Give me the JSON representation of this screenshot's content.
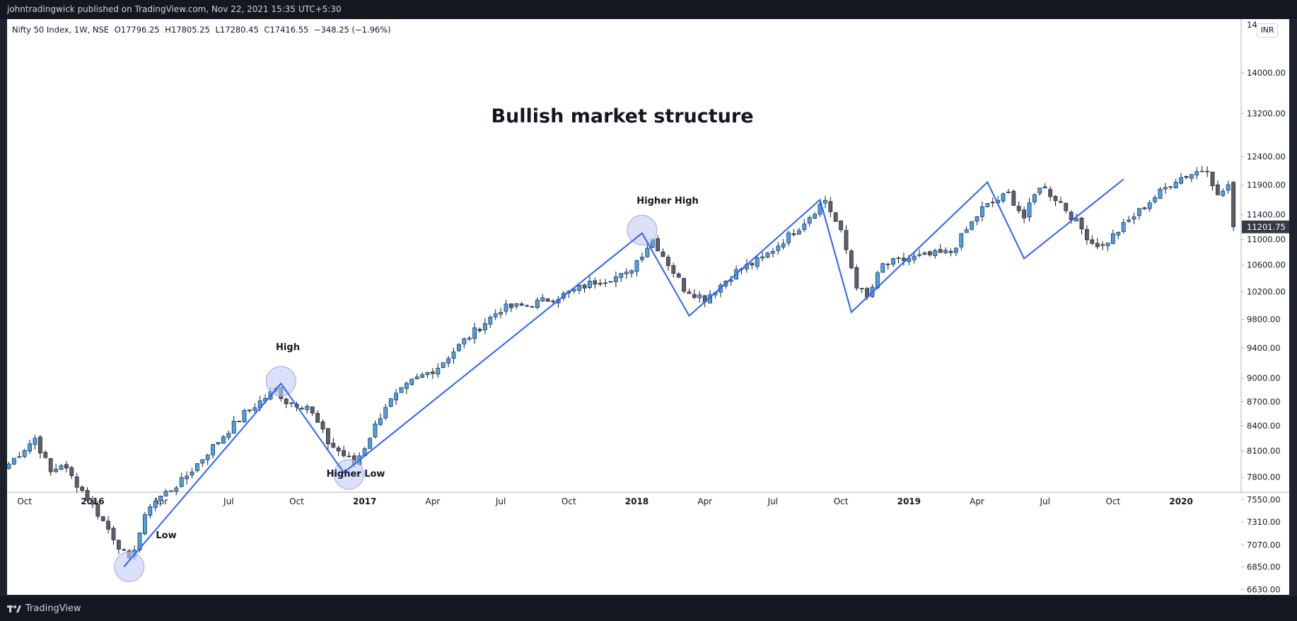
{
  "header": {
    "publisher": "johntradingwick published on TradingView.com, Nov 22, 2021 15:35 UTC+5:30"
  },
  "footer": {
    "brand": "TradingView"
  },
  "legend": {
    "symbol": "Nifty 50 Index, 1W, NSE",
    "open": "O17796.25",
    "high": "H17805.25",
    "low": "L17280.45",
    "close": "C17416.55",
    "change": "−348.25 (−1.96%)"
  },
  "currency": "INR",
  "annotations": {
    "title": "Bullish market structure",
    "low": "Low",
    "high": "High",
    "higher_low": "Higher Low",
    "higher_high": "Higher High"
  },
  "colors": {
    "up": "#4a9fe8",
    "down": "#5d606b",
    "structure_line": "#2962ff",
    "circle": "#c5cbf5",
    "last_price_bg": "#363a45"
  },
  "chart_data": {
    "type": "candlestick",
    "title": "Bullish market structure",
    "symbol": "Nifty 50 Index, 1W, NSE",
    "y_axis": {
      "scale": "log",
      "ticks": [
        6630,
        6850,
        7070,
        7310,
        7550,
        7800,
        8100,
        8400,
        8700,
        9000,
        9400,
        9800,
        10200,
        10600,
        11000,
        11400,
        11900,
        12400,
        13200,
        14000
      ],
      "tick_labels": [
        "6630.00",
        "6850.00",
        "7070.00",
        "7310.00",
        "7550.00",
        "7800.00",
        "8100.00",
        "8400.00",
        "8700.00",
        "9000.00",
        "9400.00",
        "9800.00",
        "10200.00",
        "10600.00",
        "11000.00",
        "11400.00",
        "11900.00",
        "12400.00",
        "13200.00",
        "14000.00"
      ],
      "top_label": "14",
      "last_price": 11201.75,
      "last_price_label": "11201.75"
    },
    "x_axis": {
      "ticks": [
        {
          "label": "Oct",
          "week": 3
        },
        {
          "label": "2016",
          "week": 16
        },
        {
          "label": "Apr",
          "week": 29
        },
        {
          "label": "Jul",
          "week": 42
        },
        {
          "label": "Oct",
          "week": 55
        },
        {
          "label": "2017",
          "week": 68
        },
        {
          "label": "Apr",
          "week": 81
        },
        {
          "label": "Jul",
          "week": 94
        },
        {
          "label": "Oct",
          "week": 107
        },
        {
          "label": "2018",
          "week": 120
        },
        {
          "label": "Apr",
          "week": 133
        },
        {
          "label": "Jul",
          "week": 146
        },
        {
          "label": "Oct",
          "week": 159
        },
        {
          "label": "2019",
          "week": 172
        },
        {
          "label": "Apr",
          "week": 185
        },
        {
          "label": "Jul",
          "week": 198
        },
        {
          "label": "Oct",
          "week": 211
        },
        {
          "label": "2020",
          "week": 224
        }
      ],
      "bold_labels": [
        "2016",
        "2017",
        "2018",
        "2019",
        "2020"
      ]
    },
    "waypoints": [
      {
        "week": 0,
        "close": 7950
      },
      {
        "week": 5,
        "close": 8250
      },
      {
        "week": 8,
        "close": 7850
      },
      {
        "week": 10,
        "close": 7950
      },
      {
        "week": 14,
        "close": 7650
      },
      {
        "week": 17,
        "close": 7400
      },
      {
        "week": 23,
        "close": 6900
      },
      {
        "week": 27,
        "close": 7500
      },
      {
        "week": 33,
        "close": 7750
      },
      {
        "week": 39,
        "close": 8150
      },
      {
        "week": 45,
        "close": 8550
      },
      {
        "week": 51,
        "close": 8850
      },
      {
        "week": 53,
        "close": 8700
      },
      {
        "week": 57,
        "close": 8650
      },
      {
        "week": 61,
        "close": 8200
      },
      {
        "week": 66,
        "close": 7950
      },
      {
        "week": 68,
        "close": 8150
      },
      {
        "week": 72,
        "close": 8650
      },
      {
        "week": 77,
        "close": 8950
      },
      {
        "week": 82,
        "close": 9150
      },
      {
        "week": 87,
        "close": 9500
      },
      {
        "week": 94,
        "close": 9950
      },
      {
        "week": 99,
        "close": 10000
      },
      {
        "week": 106,
        "close": 10150
      },
      {
        "week": 112,
        "close": 10350
      },
      {
        "week": 118,
        "close": 10450
      },
      {
        "week": 123,
        "close": 11000
      },
      {
        "week": 129,
        "close": 10250
      },
      {
        "week": 133,
        "close": 10100
      },
      {
        "week": 139,
        "close": 10500
      },
      {
        "week": 144,
        "close": 10700
      },
      {
        "week": 151,
        "close": 11200
      },
      {
        "week": 156,
        "close": 11650
      },
      {
        "week": 159,
        "close": 11100
      },
      {
        "week": 162,
        "close": 10300
      },
      {
        "week": 164,
        "close": 10100
      },
      {
        "week": 167,
        "close": 10600
      },
      {
        "week": 172,
        "close": 10700
      },
      {
        "week": 180,
        "close": 10800
      },
      {
        "week": 186,
        "close": 11500
      },
      {
        "week": 191,
        "close": 11750
      },
      {
        "week": 194,
        "close": 11350
      },
      {
        "week": 197,
        "close": 11900
      },
      {
        "week": 201,
        "close": 11600
      },
      {
        "week": 207,
        "close": 10950
      },
      {
        "week": 209,
        "close": 10900
      },
      {
        "week": 214,
        "close": 11300
      },
      {
        "week": 219,
        "close": 11700
      },
      {
        "week": 223,
        "close": 12000
      },
      {
        "week": 229,
        "close": 12200
      },
      {
        "week": 231,
        "close": 11700
      },
      {
        "week": 233,
        "close": 11900
      },
      {
        "week": 235,
        "close": 11201.75
      }
    ],
    "structure_line": [
      {
        "week": 22,
        "price": 6850
      },
      {
        "week": 52,
        "price": 8930
      },
      {
        "week": 64,
        "price": 7850
      },
      {
        "week": 121,
        "price": 11100
      },
      {
        "week": 130,
        "price": 9850
      },
      {
        "week": 155,
        "price": 11650
      },
      {
        "week": 161,
        "price": 9900
      },
      {
        "week": 187,
        "price": 11950
      },
      {
        "week": 194,
        "price": 10700
      },
      {
        "week": 213,
        "price": 12000
      }
    ],
    "highlights": [
      {
        "label": "Low",
        "week": 23,
        "price": 6850
      },
      {
        "label": "High",
        "week": 52,
        "price": 8960
      },
      {
        "label": "Higher Low",
        "week": 65,
        "price": 7830
      },
      {
        "label": "Higher High",
        "week": 121,
        "price": 11150
      }
    ]
  }
}
